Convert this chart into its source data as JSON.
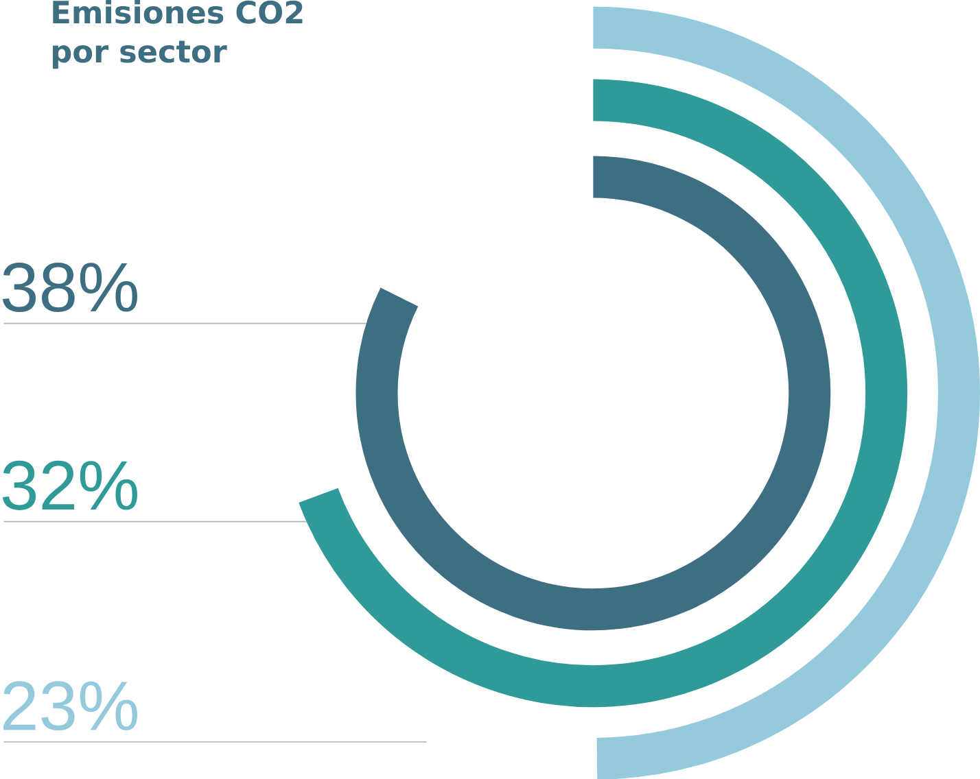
{
  "chart_data": {
    "type": "other",
    "title": "Emisiones CO2 por sector",
    "categories": [
      null,
      null,
      null
    ],
    "values": [
      38,
      32,
      23
    ],
    "colors": [
      "#3d6e82",
      "#2f9a97",
      "#94cadb"
    ],
    "value_labels": [
      "38%",
      "32%",
      "23%"
    ]
  }
}
